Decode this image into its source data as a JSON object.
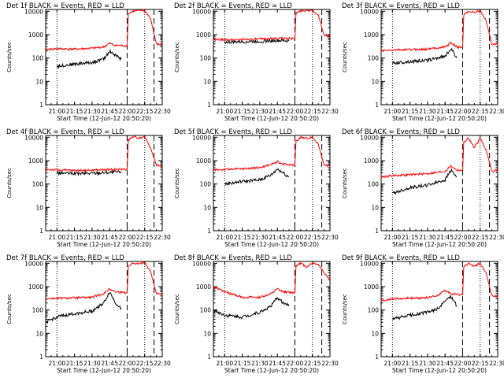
{
  "colors": {
    "events": "#000000",
    "lld": "#ff0000",
    "axis": "#000000",
    "background": "#ffffff"
  },
  "shared": {
    "xlabel": "Start Time (12-Jun-12 20:50:20)",
    "ylabel": "Counts/sec",
    "x_ticks": [
      "21:00",
      "21:15",
      "21:30",
      "21:45",
      "22:00",
      "22:15",
      "22:30"
    ],
    "y_ticks": [
      "1",
      "10",
      "100",
      "1000",
      "10000"
    ]
  },
  "chart_data": [
    {
      "type": "line",
      "title": "Det 1f BLACK = Events, RED = LLD",
      "x_range": [
        "20:50:20",
        "22:30"
      ],
      "y_scale": "log",
      "ylim": [
        1,
        12000
      ],
      "event_lines_dotted": [
        "21:00",
        "22:15"
      ],
      "event_lines_dashed": [
        "22:00",
        "22:23"
      ],
      "series": [
        {
          "name": "Events",
          "color": "#000000",
          "x": [
            "21:00",
            "21:15",
            "21:30",
            "21:40",
            "21:45",
            "21:50",
            "21:55"
          ],
          "y": [
            45,
            55,
            65,
            90,
            200,
            130,
            90
          ]
        },
        {
          "name": "LLD",
          "color": "#ff0000",
          "x": [
            "20:50:20",
            "21:00",
            "21:15",
            "21:30",
            "21:40",
            "21:45",
            "21:50",
            "22:00",
            "22:01",
            "22:05",
            "22:10",
            "22:15",
            "22:20",
            "22:25",
            "22:30"
          ],
          "y": [
            230,
            250,
            240,
            260,
            300,
            420,
            350,
            330,
            8000,
            10000,
            11000,
            10500,
            5000,
            400,
            350
          ]
        }
      ]
    },
    {
      "type": "line",
      "title": "Det 2f BLACK = Events, RED = LLD",
      "x_range": [
        "20:50:20",
        "22:30"
      ],
      "y_scale": "log",
      "ylim": [
        1,
        12000
      ],
      "event_lines_dotted": [
        "21:00",
        "22:15"
      ],
      "event_lines_dashed": [
        "22:00",
        "22:23"
      ],
      "series": [
        {
          "name": "Events",
          "color": "#000000",
          "x": [
            "21:00",
            "21:15",
            "21:30",
            "21:45",
            "21:55"
          ],
          "y": [
            480,
            500,
            520,
            560,
            540
          ]
        },
        {
          "name": "LLD",
          "color": "#ff0000",
          "x": [
            "20:50:20",
            "21:00",
            "21:15",
            "21:30",
            "21:45",
            "22:00",
            "22:01",
            "22:05",
            "22:10",
            "22:15",
            "22:20",
            "22:25",
            "22:30"
          ],
          "y": [
            600,
            610,
            620,
            650,
            700,
            680,
            8500,
            10500,
            11000,
            10800,
            7000,
            900,
            850
          ]
        }
      ]
    },
    {
      "type": "line",
      "title": "Det 3f BLACK = Events, RED = LLD",
      "x_range": [
        "20:50:20",
        "22:30"
      ],
      "y_scale": "log",
      "ylim": [
        1,
        12000
      ],
      "event_lines_dotted": [
        "21:00",
        "22:15"
      ],
      "event_lines_dashed": [
        "22:00",
        "22:23"
      ],
      "series": [
        {
          "name": "Events",
          "color": "#000000",
          "x": [
            "21:00",
            "21:15",
            "21:30",
            "21:45",
            "21:50",
            "21:55"
          ],
          "y": [
            60,
            70,
            80,
            120,
            250,
            100
          ]
        },
        {
          "name": "LLD",
          "color": "#ff0000",
          "x": [
            "20:50:20",
            "21:00",
            "21:15",
            "21:30",
            "21:45",
            "21:50",
            "21:55",
            "22:00",
            "22:01",
            "22:05",
            "22:10",
            "22:15",
            "22:20",
            "22:25",
            "22:30"
          ],
          "y": [
            200,
            220,
            230,
            240,
            300,
            450,
            300,
            280,
            7000,
            10000,
            9000,
            10500,
            4000,
            400,
            380
          ]
        }
      ]
    },
    {
      "type": "line",
      "title": "Det 4f BLACK = Events, RED = LLD",
      "x_range": [
        "20:50:20",
        "22:30"
      ],
      "y_scale": "log",
      "ylim": [
        1,
        12000
      ],
      "event_lines_dotted": [
        "21:00",
        "22:15"
      ],
      "event_lines_dashed": [
        "22:00",
        "22:23"
      ],
      "series": [
        {
          "name": "Events",
          "color": "#000000",
          "x": [
            "21:00",
            "21:15",
            "21:30",
            "21:45",
            "21:55"
          ],
          "y": [
            300,
            280,
            290,
            320,
            330
          ]
        },
        {
          "name": "LLD",
          "color": "#ff0000",
          "x": [
            "20:50:20",
            "21:00",
            "21:15",
            "21:30",
            "21:45",
            "22:00",
            "22:01",
            "22:05",
            "22:10",
            "22:15",
            "22:20",
            "22:25",
            "22:30"
          ],
          "y": [
            420,
            400,
            380,
            390,
            420,
            430,
            7500,
            10500,
            9500,
            11000,
            3500,
            650,
            600
          ]
        }
      ]
    },
    {
      "type": "line",
      "title": "Det 5f BLACK = Events, RED = LLD",
      "x_range": [
        "20:50:20",
        "22:30"
      ],
      "y_scale": "log",
      "ylim": [
        1,
        12000
      ],
      "event_lines_dotted": [
        "21:00",
        "22:15"
      ],
      "event_lines_dashed": [
        "22:00",
        "22:23"
      ],
      "series": [
        {
          "name": "Events",
          "color": "#000000",
          "x": [
            "21:00",
            "21:15",
            "21:30",
            "21:40",
            "21:45",
            "21:50",
            "21:55"
          ],
          "y": [
            100,
            130,
            150,
            250,
            450,
            300,
            200
          ]
        },
        {
          "name": "LLD",
          "color": "#ff0000",
          "x": [
            "20:50:20",
            "21:00",
            "21:15",
            "21:30",
            "21:40",
            "21:45",
            "21:50",
            "22:00",
            "22:01",
            "22:05",
            "22:10",
            "22:15",
            "22:20",
            "22:25",
            "22:30"
          ],
          "y": [
            400,
            420,
            450,
            500,
            700,
            900,
            700,
            650,
            7000,
            10000,
            9000,
            10500,
            5000,
            650,
            600
          ]
        }
      ]
    },
    {
      "type": "line",
      "title": "Det 6f BLACK = Events, RED = LLD",
      "x_range": [
        "20:50:20",
        "22:30"
      ],
      "y_scale": "log",
      "ylim": [
        1,
        12000
      ],
      "event_lines_dotted": [
        "21:00",
        "22:15"
      ],
      "event_lines_dashed": [
        "22:00",
        "22:23"
      ],
      "series": [
        {
          "name": "Events",
          "color": "#000000",
          "x": [
            "21:00",
            "21:15",
            "21:30",
            "21:45",
            "21:50",
            "21:55"
          ],
          "y": [
            40,
            70,
            90,
            150,
            400,
            200
          ]
        },
        {
          "name": "LLD",
          "color": "#ff0000",
          "x": [
            "20:50:20",
            "21:00",
            "21:15",
            "21:30",
            "21:45",
            "21:50",
            "21:55",
            "22:00",
            "22:01",
            "22:05",
            "22:10",
            "22:15",
            "22:20",
            "22:25",
            "22:30"
          ],
          "y": [
            200,
            230,
            250,
            280,
            350,
            600,
            400,
            380,
            6000,
            9500,
            3500,
            9000,
            3000,
            350,
            400
          ]
        }
      ]
    },
    {
      "type": "line",
      "title": "Det 7f BLACK = Events, RED = LLD",
      "x_range": [
        "20:50:20",
        "22:30"
      ],
      "y_scale": "log",
      "ylim": [
        1,
        12000
      ],
      "event_lines_dotted": [
        "21:00",
        "22:15"
      ],
      "event_lines_dashed": [
        "22:00",
        "22:23"
      ],
      "series": [
        {
          "name": "Events",
          "color": "#000000",
          "x": [
            "20:50:20",
            "21:00",
            "21:15",
            "21:30",
            "21:40",
            "21:45",
            "21:50",
            "21:55"
          ],
          "y": [
            30,
            50,
            70,
            90,
            200,
            600,
            200,
            120
          ]
        },
        {
          "name": "LLD",
          "color": "#ff0000",
          "x": [
            "20:50:20",
            "21:00",
            "21:15",
            "21:30",
            "21:40",
            "21:45",
            "21:50",
            "22:00",
            "22:01",
            "22:05",
            "22:10",
            "22:15",
            "22:20",
            "22:25",
            "22:30"
          ],
          "y": [
            300,
            320,
            330,
            350,
            500,
            800,
            600,
            550,
            7500,
            10500,
            9500,
            11000,
            4500,
            500,
            480
          ]
        }
      ]
    },
    {
      "type": "line",
      "title": "Det 8f BLACK = Events, RED = LLD",
      "x_range": [
        "20:50:20",
        "22:30"
      ],
      "y_scale": "log",
      "ylim": [
        1,
        12000
      ],
      "event_lines_dotted": [
        "21:00",
        "22:15"
      ],
      "event_lines_dashed": [
        "22:00",
        "22:23"
      ],
      "series": [
        {
          "name": "Events",
          "color": "#000000",
          "x": [
            "20:50:20",
            "21:00",
            "21:15",
            "21:30",
            "21:40",
            "21:45",
            "21:50",
            "21:55"
          ],
          "y": [
            100,
            60,
            50,
            80,
            150,
            350,
            200,
            150
          ]
        },
        {
          "name": "LLD",
          "color": "#ff0000",
          "x": [
            "20:50:20",
            "21:00",
            "21:15",
            "21:30",
            "21:40",
            "21:45",
            "21:50",
            "22:00",
            "22:01",
            "22:05",
            "22:10",
            "22:15",
            "22:20",
            "22:25",
            "22:30"
          ],
          "y": [
            1000,
            600,
            350,
            350,
            500,
            800,
            600,
            550,
            8000,
            10000,
            7000,
            10500,
            9000,
            4000,
            2000
          ]
        }
      ]
    },
    {
      "type": "line",
      "title": "Det 9f BLACK = Events, RED = LLD",
      "x_range": [
        "20:50:20",
        "22:30"
      ],
      "y_scale": "log",
      "ylim": [
        1,
        12000
      ],
      "event_lines_dotted": [
        "21:00",
        "22:15"
      ],
      "event_lines_dashed": [
        "22:00",
        "22:23"
      ],
      "series": [
        {
          "name": "Events",
          "color": "#000000",
          "x": [
            "21:00",
            "21:15",
            "21:30",
            "21:40",
            "21:45",
            "21:50",
            "21:55"
          ],
          "y": [
            40,
            60,
            80,
            120,
            250,
            400,
            150
          ]
        },
        {
          "name": "LLD",
          "color": "#ff0000",
          "x": [
            "20:50:20",
            "21:00",
            "21:15",
            "21:30",
            "21:40",
            "21:45",
            "21:50",
            "22:00",
            "22:01",
            "22:05",
            "22:10",
            "22:15",
            "22:20",
            "22:25",
            "22:30"
          ],
          "y": [
            250,
            300,
            320,
            340,
            450,
            700,
            500,
            450,
            7000,
            10000,
            7000,
            10500,
            4000,
            400,
            380
          ]
        }
      ]
    }
  ]
}
